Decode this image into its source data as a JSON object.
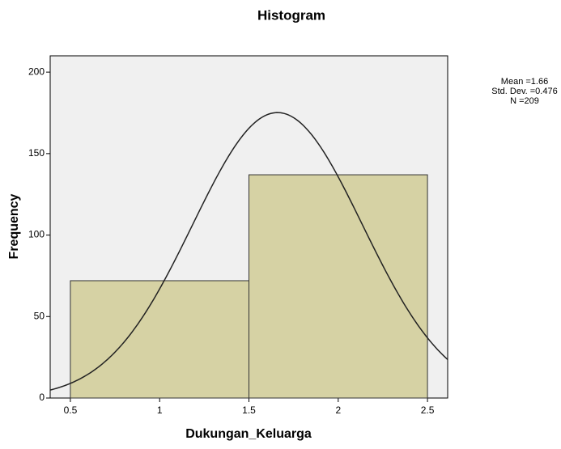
{
  "chart_data": {
    "type": "histogram",
    "title": "Histogram",
    "x_label": "Dukungan_Keluarga",
    "y_label": "Frequency",
    "bins": [
      0.5,
      1.5,
      2.5
    ],
    "values": [
      72,
      137
    ],
    "color": "#d6d2a4",
    "xlim": [
      0.387,
      2.613
    ],
    "ylim": [
      0,
      210
    ],
    "xticks": [
      0.5,
      1,
      1.5,
      2,
      2.5
    ],
    "yticks": [
      0,
      50,
      100,
      150,
      200
    ],
    "normal_curve": {
      "mean": 1.66,
      "std_dev": 0.476,
      "n": 209
    },
    "annotations": [
      "Mean =1.66",
      "Std. Dev. =0.476",
      "N =209"
    ]
  }
}
